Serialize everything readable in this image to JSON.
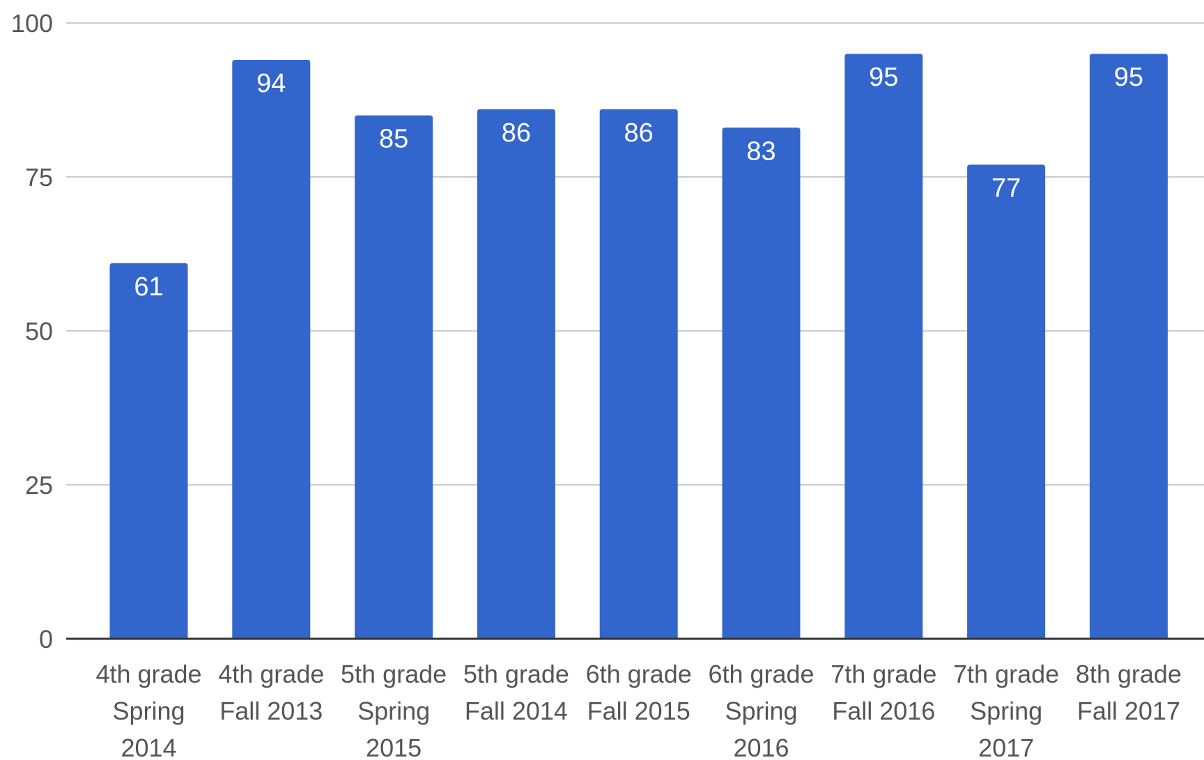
{
  "chart_data": {
    "type": "bar",
    "title": "",
    "xlabel": "",
    "ylabel": "",
    "ylim": [
      0,
      100
    ],
    "yticks": [
      "0",
      "25",
      "50",
      "75",
      "100"
    ],
    "grid": true,
    "legend": "none",
    "bar_color": "#3366cc",
    "categories": [
      [
        "4th grade",
        "Spring",
        "2014"
      ],
      [
        "4th grade",
        "Fall 2013"
      ],
      [
        "5th grade",
        "Spring",
        "2015"
      ],
      [
        "5th grade",
        "Fall 2014"
      ],
      [
        "6th grade",
        "Fall 2015"
      ],
      [
        "6th grade",
        "Spring",
        "2016"
      ],
      [
        "7th grade",
        "Fall 2016"
      ],
      [
        "7th grade",
        "Spring",
        "2017"
      ],
      [
        "8th grade",
        "Fall 2017"
      ]
    ],
    "values": [
      61,
      94,
      85,
      86,
      86,
      83,
      95,
      77,
      95
    ],
    "data_labels": [
      "61",
      "94",
      "85",
      "86",
      "86",
      "83",
      "95",
      "77",
      "95"
    ]
  }
}
